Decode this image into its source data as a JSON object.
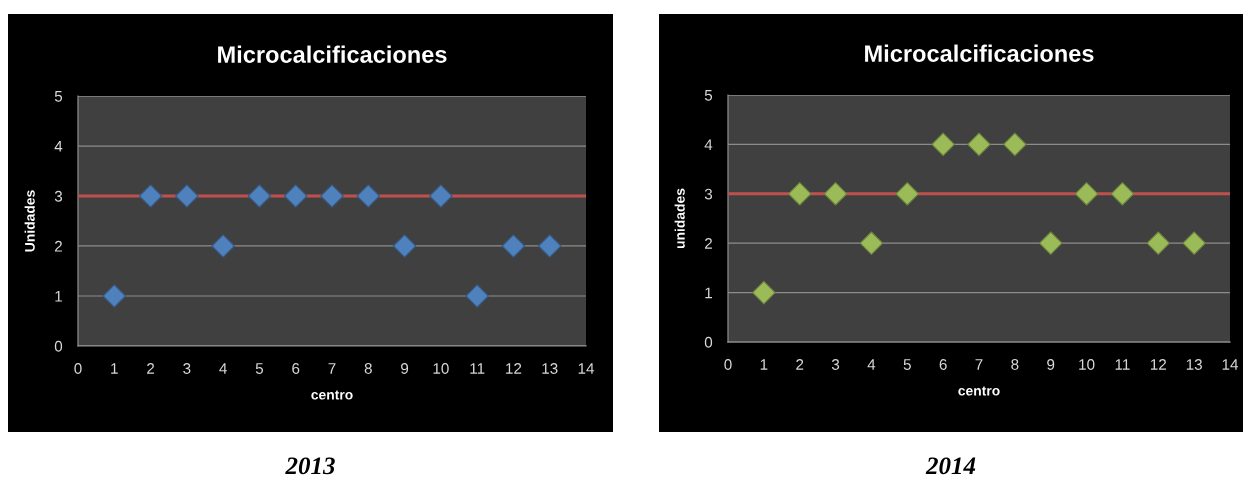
{
  "chart_data": [
    {
      "type": "scatter",
      "title": "Microcalcificaciones",
      "xlabel": "centro",
      "ylabel": "Unidades",
      "x": [
        1,
        2,
        3,
        4,
        5,
        6,
        7,
        8,
        9,
        10,
        11,
        12,
        13
      ],
      "series": [
        {
          "color": "#4f81bd",
          "values": [
            1,
            3,
            3,
            2,
            3,
            3,
            3,
            3,
            2,
            3,
            1,
            2,
            2
          ]
        }
      ],
      "xlim": [
        0,
        14
      ],
      "xticks": [
        0,
        1,
        2,
        3,
        4,
        5,
        6,
        7,
        8,
        9,
        10,
        11,
        12,
        13,
        14
      ],
      "ylim": [
        0,
        5
      ],
      "yticks": [
        0,
        1,
        2,
        3,
        4,
        5
      ],
      "grid": "y",
      "marker": "diamond",
      "ref_lines": [
        {
          "axis": "y",
          "value": 3,
          "color": "#c0504d"
        }
      ],
      "annotations": [
        "2013"
      ]
    },
    {
      "type": "scatter",
      "title": "Microcalcificaciones",
      "xlabel": "centro",
      "ylabel": "unidades",
      "x": [
        1,
        2,
        3,
        4,
        5,
        6,
        7,
        8,
        9,
        10,
        11,
        12,
        13
      ],
      "series": [
        {
          "color": "#9bbb59",
          "values": [
            1,
            3,
            3,
            2,
            3,
            4,
            4,
            4,
            2,
            3,
            3,
            2,
            2
          ]
        }
      ],
      "xlim": [
        0,
        14
      ],
      "xticks": [
        0,
        1,
        2,
        3,
        4,
        5,
        6,
        7,
        8,
        9,
        10,
        11,
        12,
        13,
        14
      ],
      "ylim": [
        0,
        5
      ],
      "yticks": [
        0,
        1,
        2,
        3,
        4,
        5
      ],
      "grid": "y",
      "marker": "diamond",
      "ref_lines": [
        {
          "axis": "y",
          "value": 3,
          "color": "#c0504d"
        }
      ],
      "annotations": [
        "2014"
      ]
    }
  ]
}
